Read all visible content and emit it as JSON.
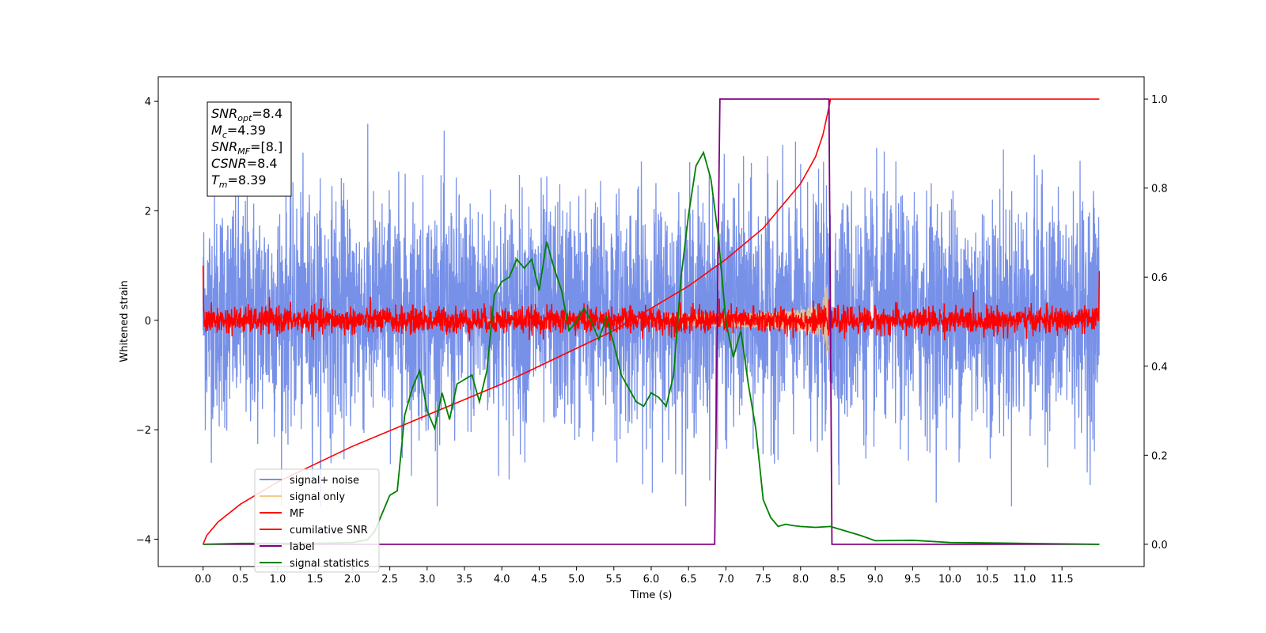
{
  "chart_data": {
    "type": "line",
    "xlabel": "Time (s)",
    "ylabel": "Whitened strain",
    "xlim": [
      -0.6,
      12.6
    ],
    "ylim": [
      -4.5,
      4.45
    ],
    "y2lim": [
      -0.05,
      1.05
    ],
    "x_ticks": [
      "0.0",
      "0.5",
      "1.0",
      "1.5",
      "2.0",
      "2.5",
      "3.0",
      "3.5",
      "4.0",
      "4.5",
      "5.0",
      "5.5",
      "6.0",
      "6.5",
      "7.0",
      "7.5",
      "8.0",
      "8.5",
      "9.0",
      "9.5",
      "10.0",
      "10.5",
      "11.0",
      "11.5"
    ],
    "y_ticks": [
      "4",
      "2",
      "0",
      "−2",
      "−4"
    ],
    "y2_ticks": [
      "1.0",
      "0.8",
      "0.6",
      "0.4",
      "0.2",
      "0.0"
    ],
    "legend_placement": "lower-left",
    "grid": false,
    "annotation": {
      "lines": [
        {
          "name": "SNR",
          "sub": "opt",
          "value": "=8.4"
        },
        {
          "name": "M",
          "sub": "c",
          "value": "=4.39"
        },
        {
          "name": "SNR",
          "sub": "MF",
          "value": "=[8.]"
        },
        {
          "name": "CSNR",
          "sub": "",
          "value": "=8.4"
        },
        {
          "name": "T",
          "sub": "m",
          "value": "=8.39"
        }
      ]
    },
    "series": [
      {
        "name": "signal+ noise",
        "color": "#7891e8",
        "axis": "left",
        "description_kind": "noise",
        "x_range": [
          0.0,
          12.0
        ],
        "std": 1.05,
        "mean": 0.15
      },
      {
        "name": "signal only",
        "color": "#f5c88a",
        "axis": "left",
        "description_kind": "chirp",
        "x_range": [
          0.0,
          8.39
        ],
        "peak_amplitude": 0.7
      },
      {
        "name": "MF",
        "color": "#ff0000",
        "axis": "left",
        "description_kind": "noise",
        "x_range": [
          0.0,
          12.0
        ],
        "std": 0.12,
        "mean": 0.0
      },
      {
        "name": "cumilative SNR",
        "color": "#ff0000",
        "axis": "right",
        "x": [
          0.0,
          0.05,
          0.2,
          0.5,
          1.0,
          1.5,
          2.0,
          2.5,
          3.0,
          3.5,
          4.0,
          4.5,
          5.0,
          5.5,
          6.0,
          6.5,
          7.0,
          7.5,
          8.0,
          8.2,
          8.3,
          8.39,
          8.4,
          12.0
        ],
        "y": [
          0.0,
          0.02,
          0.05,
          0.09,
          0.14,
          0.18,
          0.22,
          0.255,
          0.29,
          0.325,
          0.36,
          0.4,
          0.44,
          0.48,
          0.53,
          0.58,
          0.64,
          0.71,
          0.81,
          0.87,
          0.92,
          0.99,
          1.0,
          1.0
        ]
      },
      {
        "name": "label",
        "color": "#800080",
        "axis": "right",
        "x": [
          0.0,
          6.85,
          6.92,
          8.38,
          8.42,
          12.0
        ],
        "y": [
          0.0,
          0.0,
          1.0,
          1.0,
          0.0,
          0.0
        ]
      },
      {
        "name": "signal statistics",
        "color": "#008000",
        "axis": "right",
        "x": [
          0.0,
          0.5,
          1.0,
          1.5,
          2.0,
          2.2,
          2.3,
          2.4,
          2.5,
          2.6,
          2.7,
          2.8,
          2.9,
          3.0,
          3.1,
          3.2,
          3.3,
          3.4,
          3.5,
          3.6,
          3.7,
          3.8,
          3.9,
          4.0,
          4.1,
          4.2,
          4.3,
          4.4,
          4.5,
          4.6,
          4.7,
          4.8,
          4.9,
          5.0,
          5.1,
          5.2,
          5.3,
          5.4,
          5.5,
          5.6,
          5.7,
          5.8,
          5.9,
          6.0,
          6.1,
          6.2,
          6.3,
          6.4,
          6.5,
          6.6,
          6.7,
          6.8,
          6.9,
          7.0,
          7.1,
          7.2,
          7.3,
          7.4,
          7.5,
          7.6,
          7.7,
          7.8,
          7.9,
          8.0,
          8.2,
          8.4,
          8.6,
          8.8,
          9.0,
          9.5,
          10.0,
          11.0,
          12.0
        ],
        "y": [
          0.0,
          0.002,
          0.002,
          0.002,
          0.004,
          0.01,
          0.03,
          0.07,
          0.11,
          0.12,
          0.29,
          0.35,
          0.39,
          0.3,
          0.26,
          0.34,
          0.28,
          0.36,
          0.37,
          0.38,
          0.32,
          0.39,
          0.56,
          0.59,
          0.6,
          0.64,
          0.62,
          0.64,
          0.57,
          0.68,
          0.62,
          0.57,
          0.48,
          0.5,
          0.53,
          0.5,
          0.46,
          0.51,
          0.45,
          0.38,
          0.35,
          0.32,
          0.31,
          0.34,
          0.33,
          0.31,
          0.38,
          0.6,
          0.74,
          0.85,
          0.88,
          0.82,
          0.69,
          0.5,
          0.42,
          0.48,
          0.36,
          0.26,
          0.1,
          0.06,
          0.04,
          0.045,
          0.042,
          0.04,
          0.038,
          0.04,
          0.03,
          0.02,
          0.008,
          0.009,
          0.004,
          0.002,
          0.0
        ]
      }
    ]
  }
}
